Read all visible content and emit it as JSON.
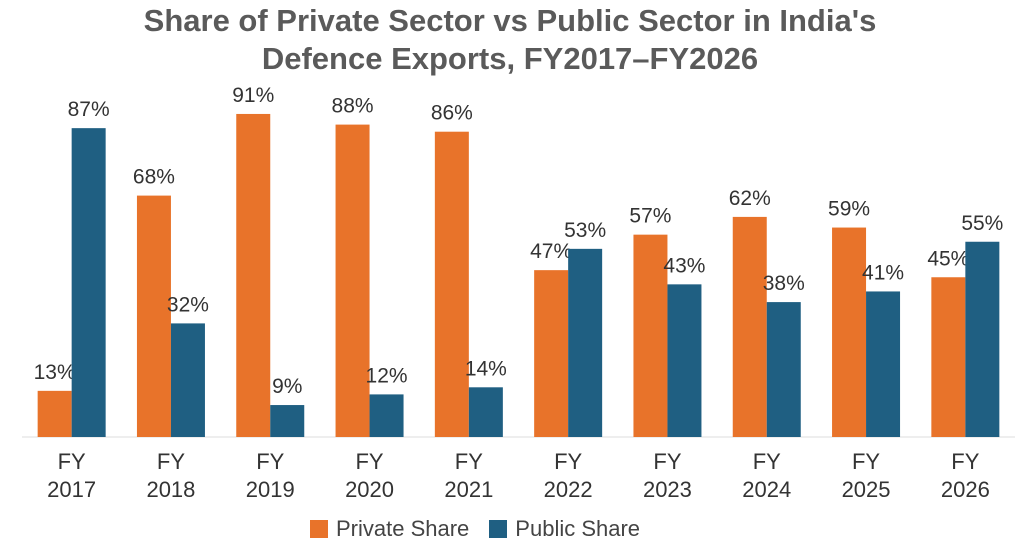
{
  "chart_data": {
    "type": "bar",
    "title": "Share of Private Sector vs Public Sector in India's Defence Exports, FY2017–FY2026",
    "categories": [
      "FY 2017",
      "FY 2018",
      "FY 2019",
      "FY 2020",
      "FY 2021",
      "FY 2022",
      "FY 2023",
      "FY 2024",
      "FY 2025",
      "FY 2026"
    ],
    "series": [
      {
        "name": "Private Share",
        "color": "#e8732a",
        "values": [
          13,
          68,
          91,
          88,
          86,
          47,
          57,
          62,
          59,
          45
        ],
        "value_labels": [
          "13%",
          "68%",
          "91%",
          "88%",
          "86%",
          "47%",
          "57%",
          "62%",
          "59%",
          "45%"
        ]
      },
      {
        "name": "Public Share",
        "color": "#1f5f82",
        "values": [
          87,
          32,
          9,
          12,
          14,
          53,
          43,
          38,
          41,
          55
        ],
        "value_labels": [
          "87%",
          "32%",
          "9%",
          "12%",
          "14%",
          "53%",
          "43%",
          "38%",
          "41%",
          "55%"
        ]
      }
    ],
    "ylim": [
      0,
      100
    ],
    "legend": "bottom"
  }
}
